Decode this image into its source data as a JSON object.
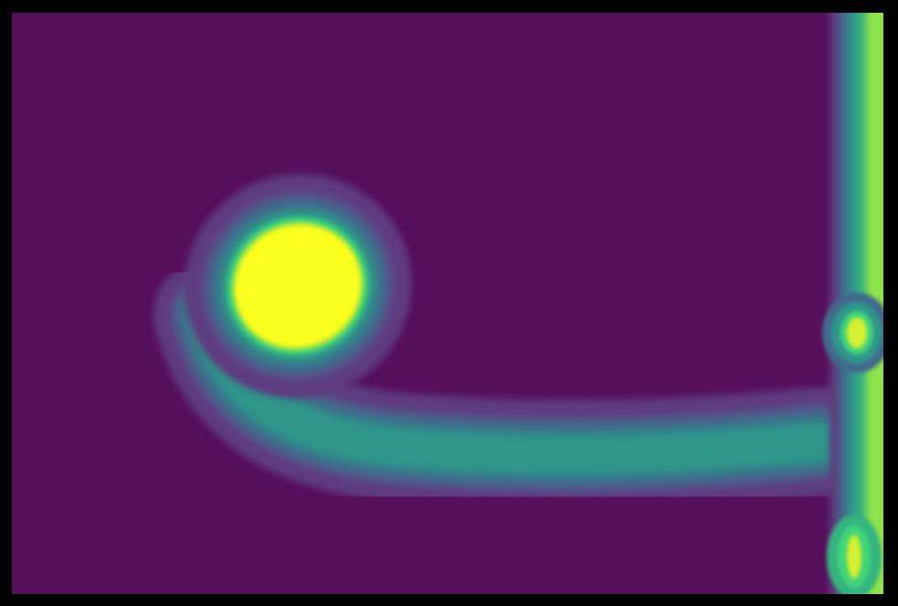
{
  "chart_data": {
    "type": "heatmap",
    "title": "",
    "xlabel": "",
    "ylabel": "",
    "colormap": "viridis",
    "background_color": "#550f5b",
    "frame_color": "#000000",
    "value_range": [
      0,
      1
    ],
    "features": [
      {
        "name": "bright-blob",
        "kind": "blob",
        "peak_value": 1.0,
        "peak_color": "#fcff1c"
      },
      {
        "name": "horizontal-stream",
        "kind": "band",
        "peak_value": 0.5,
        "peak_color": "#2f968a"
      },
      {
        "name": "right-edge-stream",
        "kind": "band",
        "peak_value": 0.78,
        "peak_color": "#3fd679"
      }
    ]
  }
}
